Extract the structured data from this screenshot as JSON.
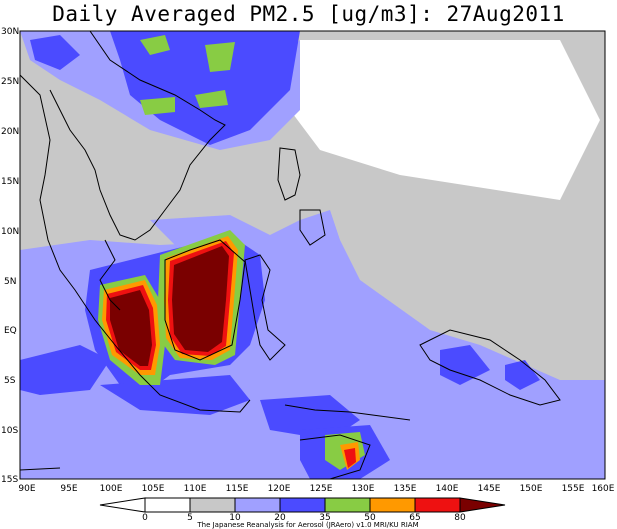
{
  "map": {
    "title": "Daily Averaged PM2.5 [ug/m3]: 27Aug2011",
    "lat_labels": [
      "30N",
      "25N",
      "20N",
      "15N",
      "10N",
      "5N",
      "EQ",
      "5S",
      "10S",
      "15S"
    ],
    "lon_labels": [
      "90E",
      "95E",
      "100E",
      "105E",
      "110E",
      "115E",
      "120E",
      "125E",
      "130E",
      "135E",
      "140E",
      "145E",
      "150E",
      "155E",
      "160E"
    ],
    "colorbar": {
      "ticks": [
        "0",
        "5",
        "10",
        "20",
        "35",
        "50",
        "65",
        "80"
      ],
      "colors": [
        "#ffffff",
        "#c8c8c8",
        "#a0a0ff",
        "#4b4bff",
        "#88cc44",
        "#ff9900",
        "#ee1111",
        "#7a0000"
      ]
    },
    "credit": "The Japanese Reanalysis for Aerosol (JRAero) v1.0 MRI/KU RIAM"
  }
}
